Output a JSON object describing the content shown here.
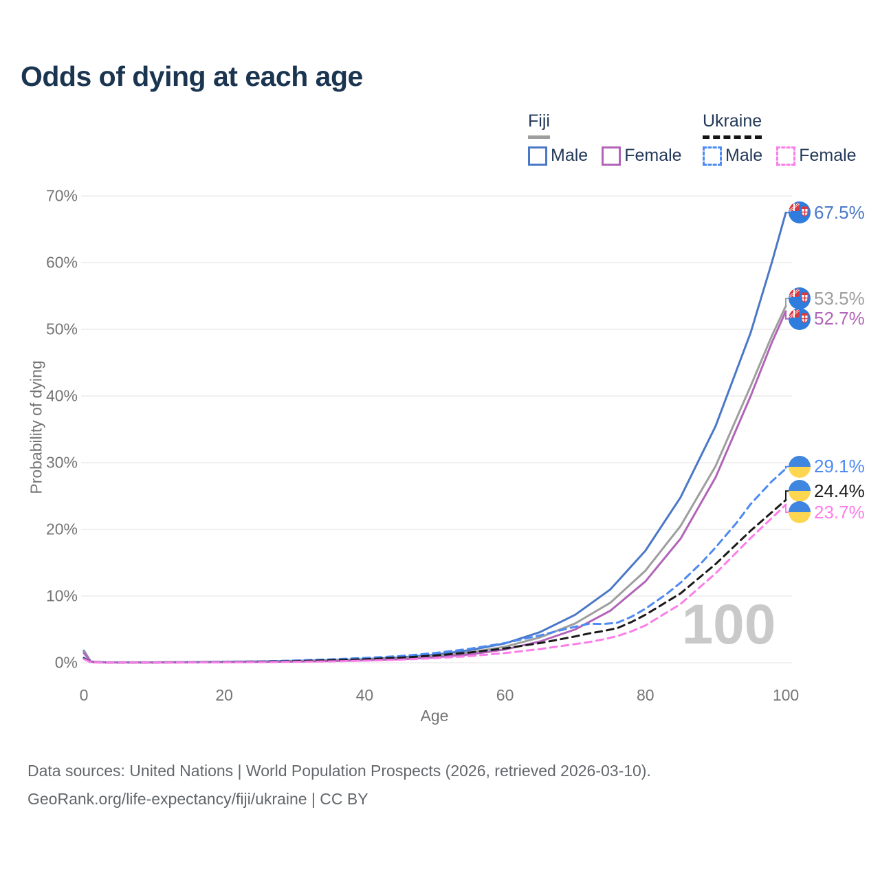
{
  "title": "Odds of dying at each age",
  "legend": {
    "groups": [
      {
        "country": "Fiji",
        "line_style": "solid",
        "underline_color": "#9e9e9e",
        "items": [
          {
            "label": "Male",
            "color": "#4a78c6",
            "dash": "solid"
          },
          {
            "label": "Female",
            "color": "#b264b8",
            "dash": "solid"
          }
        ]
      },
      {
        "country": "Ukraine",
        "line_style": "dashed",
        "underline_color": "#141414",
        "items": [
          {
            "label": "Male",
            "color": "#4d8af2",
            "dash": "dashed"
          },
          {
            "label": "Female",
            "color": "#fb7de9",
            "dash": "dashed"
          }
        ]
      }
    ]
  },
  "watermark_age": "100",
  "footer": {
    "line1": "Data sources: United Nations | World Population Prospects (2026, retrieved 2026-03-10).",
    "line2": "GeoRank.org/life-expectancy/fiji/ukraine | CC BY"
  },
  "chart_data": {
    "type": "line",
    "title": "Odds of dying at each age",
    "xlabel": "Age",
    "ylabel": "Probability of dying",
    "xlim": [
      0,
      100
    ],
    "ylim": [
      0,
      70
    ],
    "xticks": [
      0,
      20,
      40,
      60,
      80,
      100
    ],
    "yticks": [
      0,
      10,
      20,
      30,
      40,
      50,
      60,
      70
    ],
    "ytick_suffix": "%",
    "grid": "horizontal-only",
    "grid_color": "#ececec",
    "legend_position": "top-right",
    "series": [
      {
        "name": "Fiji Male",
        "country": "fiji",
        "flag": "fiji",
        "color": "#4a78c6",
        "dash": "solid",
        "end_value": 67.5,
        "end_label": "67.5%",
        "label_dy": 0,
        "points": [
          [
            0,
            1.8
          ],
          [
            1,
            0.18
          ],
          [
            3,
            0.07
          ],
          [
            5,
            0.06
          ],
          [
            10,
            0.06
          ],
          [
            15,
            0.1
          ],
          [
            20,
            0.15
          ],
          [
            25,
            0.2
          ],
          [
            30,
            0.28
          ],
          [
            35,
            0.38
          ],
          [
            40,
            0.55
          ],
          [
            45,
            0.8
          ],
          [
            50,
            1.2
          ],
          [
            55,
            1.9
          ],
          [
            60,
            2.9
          ],
          [
            65,
            4.6
          ],
          [
            70,
            7.2
          ],
          [
            75,
            11.0
          ],
          [
            80,
            16.8
          ],
          [
            85,
            24.8
          ],
          [
            90,
            35.5
          ],
          [
            95,
            49.5
          ],
          [
            98,
            60.0
          ],
          [
            100,
            67.5
          ]
        ]
      },
      {
        "name": "Fiji (both sexes)",
        "country": "fiji",
        "flag": "fiji",
        "color": "#9e9e9e",
        "dash": "solid",
        "end_value": 53.5,
        "end_label": "53.5%",
        "label_dy": -11,
        "points": [
          [
            0,
            1.65
          ],
          [
            1,
            0.16
          ],
          [
            3,
            0.06
          ],
          [
            5,
            0.05
          ],
          [
            10,
            0.05
          ],
          [
            15,
            0.08
          ],
          [
            20,
            0.12
          ],
          [
            25,
            0.16
          ],
          [
            30,
            0.22
          ],
          [
            35,
            0.31
          ],
          [
            40,
            0.45
          ],
          [
            45,
            0.65
          ],
          [
            50,
            1.0
          ],
          [
            55,
            1.55
          ],
          [
            60,
            2.4
          ],
          [
            65,
            3.8
          ],
          [
            70,
            5.9
          ],
          [
            75,
            9.0
          ],
          [
            80,
            13.8
          ],
          [
            85,
            20.5
          ],
          [
            90,
            29.5
          ],
          [
            95,
            41.5
          ],
          [
            98,
            49.0
          ],
          [
            100,
            53.5
          ]
        ]
      },
      {
        "name": "Fiji Female",
        "country": "fiji",
        "flag": "fiji",
        "color": "#b264b8",
        "dash": "solid",
        "end_value": 52.7,
        "end_label": "52.7%",
        "label_dy": 11,
        "points": [
          [
            0,
            1.45
          ],
          [
            1,
            0.14
          ],
          [
            3,
            0.05
          ],
          [
            5,
            0.04
          ],
          [
            10,
            0.04
          ],
          [
            15,
            0.06
          ],
          [
            20,
            0.09
          ],
          [
            25,
            0.12
          ],
          [
            30,
            0.17
          ],
          [
            35,
            0.25
          ],
          [
            40,
            0.36
          ],
          [
            45,
            0.52
          ],
          [
            50,
            0.8
          ],
          [
            55,
            1.25
          ],
          [
            60,
            2.0
          ],
          [
            65,
            3.2
          ],
          [
            70,
            5.0
          ],
          [
            75,
            7.8
          ],
          [
            80,
            12.2
          ],
          [
            85,
            18.6
          ],
          [
            90,
            27.8
          ],
          [
            95,
            40.0
          ],
          [
            98,
            48.0
          ],
          [
            100,
            52.7
          ]
        ]
      },
      {
        "name": "Ukraine Male",
        "country": "ukraine",
        "flag": "ukraine",
        "color": "#4d8af2",
        "dash": "dashed",
        "end_value": 29.1,
        "end_label": "29.1%",
        "label_dy": -3,
        "points": [
          [
            0,
            0.75
          ],
          [
            1,
            0.07
          ],
          [
            3,
            0.04
          ],
          [
            5,
            0.03
          ],
          [
            10,
            0.03
          ],
          [
            15,
            0.06
          ],
          [
            20,
            0.12
          ],
          [
            25,
            0.2
          ],
          [
            30,
            0.33
          ],
          [
            35,
            0.5
          ],
          [
            40,
            0.72
          ],
          [
            45,
            1.0
          ],
          [
            50,
            1.45
          ],
          [
            55,
            2.1
          ],
          [
            60,
            2.95
          ],
          [
            65,
            4.1
          ],
          [
            68,
            4.9
          ],
          [
            70,
            5.4
          ],
          [
            72,
            5.85
          ],
          [
            74,
            5.8
          ],
          [
            76,
            6.0
          ],
          [
            78,
            6.9
          ],
          [
            80,
            8.1
          ],
          [
            83,
            10.3
          ],
          [
            85,
            12.0
          ],
          [
            88,
            15.0
          ],
          [
            90,
            17.3
          ],
          [
            93,
            21.0
          ],
          [
            95,
            23.8
          ],
          [
            98,
            27.2
          ],
          [
            100,
            29.1
          ]
        ]
      },
      {
        "name": "Ukraine (both sexes)",
        "country": "ukraine",
        "flag": "ukraine",
        "color": "#1a1a1a",
        "dash": "dashed",
        "end_value": 24.4,
        "end_label": "24.4%",
        "label_dy": -13,
        "points": [
          [
            0,
            0.65
          ],
          [
            1,
            0.06
          ],
          [
            3,
            0.03
          ],
          [
            5,
            0.03
          ],
          [
            10,
            0.03
          ],
          [
            15,
            0.05
          ],
          [
            20,
            0.09
          ],
          [
            25,
            0.15
          ],
          [
            30,
            0.24
          ],
          [
            35,
            0.37
          ],
          [
            40,
            0.53
          ],
          [
            45,
            0.76
          ],
          [
            50,
            1.08
          ],
          [
            55,
            1.55
          ],
          [
            60,
            2.15
          ],
          [
            65,
            2.95
          ],
          [
            70,
            3.95
          ],
          [
            72,
            4.4
          ],
          [
            74,
            4.75
          ],
          [
            76,
            5.2
          ],
          [
            78,
            6.1
          ],
          [
            80,
            7.2
          ],
          [
            85,
            10.4
          ],
          [
            90,
            14.8
          ],
          [
            95,
            19.8
          ],
          [
            100,
            24.4
          ]
        ]
      },
      {
        "name": "Ukraine Female",
        "country": "ukraine",
        "flag": "ukraine",
        "color": "#fb7de9",
        "dash": "dashed",
        "end_value": 23.7,
        "end_label": "23.7%",
        "label_dy": 11,
        "points": [
          [
            0,
            0.55
          ],
          [
            1,
            0.05
          ],
          [
            3,
            0.03
          ],
          [
            5,
            0.02
          ],
          [
            10,
            0.02
          ],
          [
            15,
            0.04
          ],
          [
            20,
            0.06
          ],
          [
            25,
            0.09
          ],
          [
            30,
            0.14
          ],
          [
            35,
            0.21
          ],
          [
            40,
            0.31
          ],
          [
            45,
            0.46
          ],
          [
            50,
            0.68
          ],
          [
            55,
            1.0
          ],
          [
            60,
            1.45
          ],
          [
            65,
            2.05
          ],
          [
            70,
            2.8
          ],
          [
            72,
            3.1
          ],
          [
            74,
            3.5
          ],
          [
            76,
            4.0
          ],
          [
            78,
            4.7
          ],
          [
            80,
            5.6
          ],
          [
            85,
            8.8
          ],
          [
            90,
            13.4
          ],
          [
            95,
            18.7
          ],
          [
            100,
            23.7
          ]
        ]
      }
    ]
  }
}
